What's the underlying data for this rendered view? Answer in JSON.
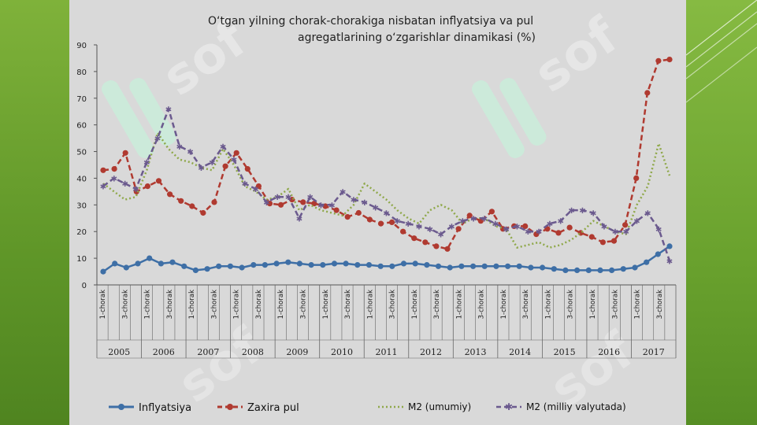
{
  "chart_data": {
    "type": "line",
    "title_line1": "O‘tgan yilning chorak-chorakiga nisbatan inflyatsiya va pul",
    "title_line2": "agregatlarining o‘zgarishlar dinamikasi (%)",
    "ylim": [
      0,
      90
    ],
    "y_ticks": [
      "0",
      "10",
      "20",
      "30",
      "40",
      "50",
      "60",
      "70",
      "80",
      "90"
    ],
    "quarter_labels": [
      "1-chorak",
      "3-chorak"
    ],
    "years": [
      "2005",
      "2006",
      "2007",
      "2008",
      "2009",
      "2010",
      "2011",
      "2012",
      "2013",
      "2014",
      "2015",
      "2016",
      "2017"
    ],
    "grid": false,
    "legend_position": "bottom",
    "series": [
      {
        "name": "Inflyatsiya",
        "color": "#3e6fa6",
        "style": "solid-circle",
        "values": [
          5,
          8,
          6.5,
          8,
          10,
          8,
          8.5,
          7,
          5.5,
          6,
          7,
          7,
          6.5,
          7.5,
          7.5,
          8,
          8.5,
          8,
          7.5,
          7.5,
          8,
          8,
          7.5,
          7.5,
          7,
          7,
          8,
          8,
          7.5,
          7,
          6.5,
          7,
          7,
          7,
          7,
          7,
          7,
          6.5,
          6.5,
          6,
          5.5,
          5.5,
          5.5,
          5.5,
          5.5,
          6,
          6.5,
          8.5,
          11.5,
          14.5
        ]
      },
      {
        "name": "Zaxira pul",
        "color": "#b03a30",
        "style": "dashed-circle",
        "values": [
          43,
          43.5,
          49.5,
          35,
          37,
          39,
          34,
          31.5,
          29.5,
          27,
          31,
          44.5,
          49.5,
          43.5,
          37,
          30.5,
          30,
          32,
          31,
          30.5,
          29.5,
          28,
          25.5,
          27,
          24.5,
          23,
          23.5,
          20,
          17.5,
          16,
          14.5,
          13.5,
          21,
          26,
          24,
          27.5,
          21,
          22,
          22,
          19,
          21,
          19.5,
          21.5,
          19.5,
          18,
          16,
          16.5,
          22.5,
          40,
          72,
          84,
          84.5
        ]
      },
      {
        "name": "M2 (umumiy)",
        "color": "#8fa84a",
        "style": "dotted",
        "values": [
          38,
          35,
          32,
          33,
          43,
          57,
          51,
          47,
          46,
          44,
          43,
          51,
          45,
          37,
          35,
          32,
          33,
          36,
          28,
          30,
          28,
          27,
          26,
          30,
          38,
          35,
          32,
          28,
          25,
          23,
          28,
          30,
          28,
          23,
          25,
          25,
          22,
          21,
          14,
          15,
          16,
          14,
          15,
          17,
          20,
          24,
          22,
          20,
          19,
          30,
          37,
          53,
          41
        ]
      },
      {
        "name": "M2 (milliy valyutada)",
        "color": "#6b5a8e",
        "style": "dashed-star",
        "values": [
          37,
          40,
          38,
          36,
          46,
          55,
          66,
          52,
          50,
          44,
          46,
          52,
          47,
          38,
          36,
          31,
          33,
          33,
          25,
          33,
          30,
          30,
          35,
          32,
          31,
          29,
          27,
          24,
          23,
          22,
          21,
          19,
          22,
          24,
          25,
          25,
          23,
          21,
          22,
          20,
          20,
          23,
          24,
          28,
          28,
          27,
          22,
          20,
          20,
          24,
          27,
          21,
          9
        ]
      }
    ]
  },
  "watermark": {
    "text": "sof"
  }
}
